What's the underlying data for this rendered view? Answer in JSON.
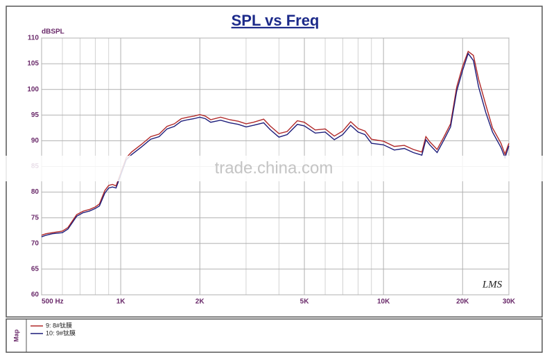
{
  "chart_data": {
    "type": "line",
    "title": "SPL vs Freq",
    "y_label": "dBSPL",
    "logo": "LMS",
    "legend_label": "Map",
    "watermark": "trade.china.com",
    "x": [
      500,
      520,
      550,
      600,
      630,
      680,
      720,
      760,
      800,
      830,
      870,
      900,
      930,
      960,
      1000,
      1050,
      1100,
      1200,
      1300,
      1400,
      1500,
      1600,
      1700,
      1800,
      1900,
      2000,
      2100,
      2200,
      2400,
      2600,
      2800,
      3000,
      3200,
      3500,
      3700,
      4000,
      4300,
      4700,
      5000,
      5500,
      6000,
      6500,
      7000,
      7500,
      8000,
      8500,
      9000,
      10000,
      11000,
      12000,
      13000,
      14000,
      14500,
      15000,
      16000,
      17000,
      18000,
      19000,
      20000,
      21000,
      22000,
      23000,
      24500,
      26000,
      28000,
      29000,
      30000
    ],
    "series": [
      {
        "name": "9: 8#钛膜",
        "color": "#b02828",
        "values": [
          71.6,
          71.9,
          72.1,
          72.4,
          73.1,
          75.6,
          76.3,
          76.6,
          77.1,
          77.7,
          80.3,
          81.3,
          81.5,
          81.2,
          83.7,
          86.7,
          87.8,
          89.3,
          90.8,
          91.3,
          92.8,
          93.3,
          94.3,
          94.6,
          94.8,
          95.1,
          94.8,
          94.1,
          94.6,
          94.1,
          93.8,
          93.3,
          93.6,
          94.2,
          92.9,
          91.4,
          91.8,
          93.9,
          93.6,
          92.1,
          92.3,
          90.9,
          91.9,
          93.7,
          92.4,
          91.9,
          90.3,
          89.9,
          88.9,
          89.1,
          88.3,
          87.8,
          90.8,
          89.8,
          88.3,
          90.8,
          93.3,
          100.5,
          104.5,
          107.4,
          106.6,
          102,
          97,
          92.5,
          89.5,
          87.4,
          89.5
        ]
      },
      {
        "name": "10: 9#钛膜",
        "color": "#1c1c7a",
        "values": [
          71.3,
          71.6,
          71.9,
          72.1,
          72.8,
          75.3,
          76.0,
          76.3,
          76.8,
          77.3,
          79.8,
          80.8,
          81.0,
          80.8,
          83.3,
          86.3,
          87.3,
          88.8,
          90.3,
          90.8,
          92.3,
          92.8,
          93.8,
          94.1,
          94.3,
          94.6,
          94.3,
          93.6,
          94.0,
          93.5,
          93.2,
          92.7,
          93.0,
          93.5,
          92.2,
          90.7,
          91.2,
          93.2,
          92.9,
          91.5,
          91.7,
          90.2,
          91.2,
          93.0,
          91.7,
          91.2,
          89.5,
          89.2,
          88.2,
          88.5,
          87.7,
          87.2,
          90.2,
          89.2,
          87.7,
          90.2,
          92.7,
          99.7,
          103.7,
          107.0,
          105.6,
          100.5,
          95.5,
          91.7,
          88.7,
          86.7,
          89.0
        ]
      }
    ],
    "xlim": [
      500,
      30000
    ],
    "ylim": [
      60,
      110
    ],
    "log_x": true,
    "xticks": [
      {
        "value": 500,
        "label": "500  Hz"
      },
      {
        "value": 1000,
        "label": "1K"
      },
      {
        "value": 2000,
        "label": "2K"
      },
      {
        "value": 5000,
        "label": "5K"
      },
      {
        "value": 10000,
        "label": "10K"
      },
      {
        "value": 20000,
        "label": "20K"
      },
      {
        "value": 30000,
        "label": "30K"
      }
    ],
    "xgrid": [
      600,
      700,
      800,
      900,
      3000,
      4000,
      6000,
      7000,
      8000,
      9000
    ],
    "yticks": [
      60,
      65,
      70,
      75,
      80,
      85,
      90,
      95,
      100,
      105,
      110
    ],
    "grid": true
  }
}
